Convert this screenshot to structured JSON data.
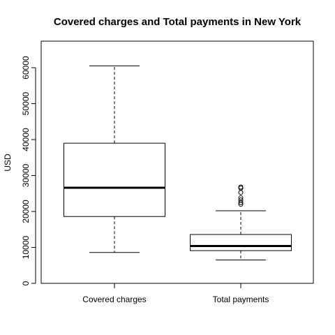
{
  "chart_data": {
    "type": "box",
    "title": "Covered charges and Total payments in New York",
    "xlabel": "",
    "ylabel": "USD",
    "ylim": [
      0,
      67000
    ],
    "yticks": [
      0,
      10000,
      20000,
      30000,
      40000,
      50000,
      60000
    ],
    "ytick_labels": [
      "0",
      "10000",
      "20000",
      "30000",
      "40000",
      "50000",
      "60000"
    ],
    "grid": false,
    "categories": [
      "Covered charges",
      "Total payments"
    ],
    "boxes": [
      {
        "category": "Covered charges",
        "whisker_low": 8600,
        "q1": 18600,
        "median": 26600,
        "q3": 39000,
        "whisker_high": 60500,
        "outliers": []
      },
      {
        "category": "Total payments",
        "whisker_low": 6500,
        "q1": 9100,
        "median": 10400,
        "q3": 13600,
        "whisker_high": 20200,
        "outliers": [
          22000,
          22500,
          23200,
          23800,
          25300,
          26500,
          26800
        ]
      }
    ]
  }
}
